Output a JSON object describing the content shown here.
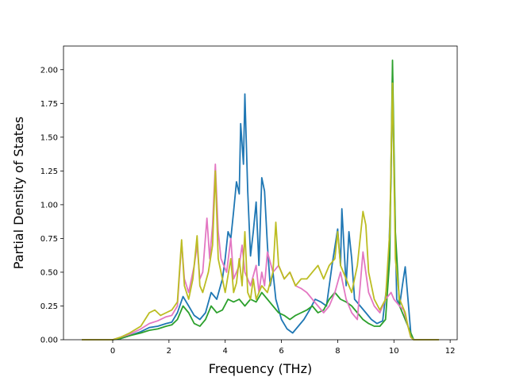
{
  "chart_data": {
    "type": "line",
    "title": "",
    "xlabel": "Frequency (THz)",
    "ylabel": "Partial Density of States",
    "xlim": [
      -1.75,
      12.25
    ],
    "ylim": [
      0,
      2.175
    ],
    "xticks": [
      0,
      2,
      4,
      6,
      8,
      10,
      12
    ],
    "xtick_labels": [
      "0",
      "2",
      "4",
      "6",
      "8",
      "10",
      "12"
    ],
    "yticks": [
      0,
      0.25,
      0.5,
      0.75,
      1.0,
      1.25,
      1.5,
      1.75,
      2.0
    ],
    "ytick_labels": [
      "0.00",
      "0.25",
      "0.50",
      "0.75",
      "1.00",
      "1.25",
      "1.50",
      "1.75",
      "2.00"
    ],
    "grid": false,
    "legend": "none",
    "series": [
      {
        "color": "#1f77b4",
        "points": [
          [
            -1.1,
            0
          ],
          [
            0.0,
            0
          ],
          [
            0.3,
            0.01
          ],
          [
            0.6,
            0.03
          ],
          [
            1.0,
            0.06
          ],
          [
            1.3,
            0.09
          ],
          [
            1.6,
            0.1
          ],
          [
            1.9,
            0.12
          ],
          [
            2.1,
            0.13
          ],
          [
            2.3,
            0.2
          ],
          [
            2.5,
            0.32
          ],
          [
            2.7,
            0.25
          ],
          [
            2.9,
            0.18
          ],
          [
            3.1,
            0.15
          ],
          [
            3.3,
            0.2
          ],
          [
            3.5,
            0.35
          ],
          [
            3.7,
            0.3
          ],
          [
            3.9,
            0.45
          ],
          [
            4.0,
            0.6
          ],
          [
            4.1,
            0.8
          ],
          [
            4.2,
            0.75
          ],
          [
            4.3,
            0.95
          ],
          [
            4.4,
            1.17
          ],
          [
            4.5,
            1.08
          ],
          [
            4.55,
            1.6
          ],
          [
            4.6,
            1.45
          ],
          [
            4.65,
            1.3
          ],
          [
            4.7,
            1.82
          ],
          [
            4.8,
            1.1
          ],
          [
            4.9,
            0.62
          ],
          [
            5.0,
            0.8
          ],
          [
            5.1,
            1.02
          ],
          [
            5.2,
            0.55
          ],
          [
            5.3,
            1.2
          ],
          [
            5.4,
            1.1
          ],
          [
            5.5,
            0.7
          ],
          [
            5.6,
            0.4
          ],
          [
            5.7,
            0.5
          ],
          [
            5.8,
            0.3
          ],
          [
            6.0,
            0.15
          ],
          [
            6.2,
            0.08
          ],
          [
            6.4,
            0.05
          ],
          [
            6.6,
            0.1
          ],
          [
            6.8,
            0.15
          ],
          [
            7.0,
            0.22
          ],
          [
            7.2,
            0.3
          ],
          [
            7.4,
            0.28
          ],
          [
            7.6,
            0.25
          ],
          [
            7.8,
            0.55
          ],
          [
            8.0,
            0.82
          ],
          [
            8.1,
            0.55
          ],
          [
            8.15,
            0.97
          ],
          [
            8.3,
            0.4
          ],
          [
            8.4,
            0.8
          ],
          [
            8.5,
            0.6
          ],
          [
            8.6,
            0.3
          ],
          [
            8.8,
            0.25
          ],
          [
            9.0,
            0.2
          ],
          [
            9.2,
            0.15
          ],
          [
            9.4,
            0.12
          ],
          [
            9.6,
            0.14
          ],
          [
            9.8,
            0.5
          ],
          [
            9.9,
            1.2
          ],
          [
            9.95,
            2.0
          ],
          [
            10.0,
            1.3
          ],
          [
            10.1,
            0.3
          ],
          [
            10.2,
            0.25
          ],
          [
            10.3,
            0.4
          ],
          [
            10.4,
            0.54
          ],
          [
            10.5,
            0.3
          ],
          [
            10.6,
            0.05
          ],
          [
            10.7,
            0
          ],
          [
            11.6,
            0
          ]
        ]
      },
      {
        "color": "#2ca02c",
        "points": [
          [
            -1.1,
            0
          ],
          [
            0.0,
            0
          ],
          [
            0.3,
            0.01
          ],
          [
            0.6,
            0.03
          ],
          [
            1.0,
            0.05
          ],
          [
            1.3,
            0.07
          ],
          [
            1.6,
            0.08
          ],
          [
            1.9,
            0.1
          ],
          [
            2.1,
            0.11
          ],
          [
            2.3,
            0.15
          ],
          [
            2.5,
            0.25
          ],
          [
            2.7,
            0.2
          ],
          [
            2.9,
            0.12
          ],
          [
            3.1,
            0.1
          ],
          [
            3.3,
            0.15
          ],
          [
            3.5,
            0.25
          ],
          [
            3.7,
            0.2
          ],
          [
            3.9,
            0.22
          ],
          [
            4.1,
            0.3
          ],
          [
            4.3,
            0.28
          ],
          [
            4.5,
            0.3
          ],
          [
            4.7,
            0.25
          ],
          [
            4.9,
            0.3
          ],
          [
            5.1,
            0.28
          ],
          [
            5.3,
            0.35
          ],
          [
            5.5,
            0.3
          ],
          [
            5.7,
            0.25
          ],
          [
            5.9,
            0.2
          ],
          [
            6.1,
            0.18
          ],
          [
            6.3,
            0.15
          ],
          [
            6.5,
            0.18
          ],
          [
            6.7,
            0.2
          ],
          [
            6.9,
            0.22
          ],
          [
            7.1,
            0.25
          ],
          [
            7.3,
            0.2
          ],
          [
            7.5,
            0.22
          ],
          [
            7.7,
            0.3
          ],
          [
            7.9,
            0.35
          ],
          [
            8.1,
            0.3
          ],
          [
            8.3,
            0.28
          ],
          [
            8.5,
            0.25
          ],
          [
            8.7,
            0.2
          ],
          [
            8.9,
            0.15
          ],
          [
            9.1,
            0.12
          ],
          [
            9.3,
            0.1
          ],
          [
            9.5,
            0.1
          ],
          [
            9.7,
            0.15
          ],
          [
            9.85,
            0.6
          ],
          [
            9.95,
            2.07
          ],
          [
            10.05,
            0.8
          ],
          [
            10.2,
            0.25
          ],
          [
            10.4,
            0.15
          ],
          [
            10.6,
            0.05
          ],
          [
            10.7,
            0
          ],
          [
            11.6,
            0
          ]
        ]
      },
      {
        "color": "#e377c2",
        "points": [
          [
            -1.1,
            0
          ],
          [
            0.0,
            0
          ],
          [
            0.3,
            0.02
          ],
          [
            0.6,
            0.04
          ],
          [
            1.0,
            0.08
          ],
          [
            1.3,
            0.12
          ],
          [
            1.6,
            0.14
          ],
          [
            1.9,
            0.17
          ],
          [
            2.1,
            0.18
          ],
          [
            2.3,
            0.25
          ],
          [
            2.45,
            0.72
          ],
          [
            2.55,
            0.45
          ],
          [
            2.7,
            0.35
          ],
          [
            2.9,
            0.55
          ],
          [
            3.0,
            0.7
          ],
          [
            3.1,
            0.45
          ],
          [
            3.2,
            0.5
          ],
          [
            3.35,
            0.9
          ],
          [
            3.45,
            0.6
          ],
          [
            3.55,
            0.85
          ],
          [
            3.65,
            1.3
          ],
          [
            3.75,
            0.8
          ],
          [
            3.85,
            0.6
          ],
          [
            3.95,
            0.55
          ],
          [
            4.05,
            0.5
          ],
          [
            4.2,
            0.75
          ],
          [
            4.3,
            0.45
          ],
          [
            4.4,
            0.5
          ],
          [
            4.5,
            0.55
          ],
          [
            4.6,
            0.7
          ],
          [
            4.7,
            0.5
          ],
          [
            4.8,
            0.45
          ],
          [
            4.9,
            0.4
          ],
          [
            5.1,
            0.55
          ],
          [
            5.2,
            0.35
          ],
          [
            5.3,
            0.5
          ],
          [
            5.4,
            0.4
          ],
          [
            5.5,
            0.65
          ],
          [
            5.7,
            0.5
          ],
          [
            5.9,
            0.55
          ],
          [
            6.1,
            0.45
          ],
          [
            6.3,
            0.5
          ],
          [
            6.5,
            0.4
          ],
          [
            6.7,
            0.38
          ],
          [
            6.9,
            0.35
          ],
          [
            7.1,
            0.3
          ],
          [
            7.3,
            0.25
          ],
          [
            7.5,
            0.2
          ],
          [
            7.7,
            0.25
          ],
          [
            7.9,
            0.35
          ],
          [
            8.1,
            0.5
          ],
          [
            8.3,
            0.3
          ],
          [
            8.5,
            0.2
          ],
          [
            8.7,
            0.15
          ],
          [
            8.9,
            0.65
          ],
          [
            9.1,
            0.35
          ],
          [
            9.3,
            0.25
          ],
          [
            9.5,
            0.2
          ],
          [
            9.7,
            0.3
          ],
          [
            9.9,
            0.35
          ],
          [
            10.0,
            0.3
          ],
          [
            10.2,
            0.25
          ],
          [
            10.35,
            0.22
          ],
          [
            10.5,
            0.1
          ],
          [
            10.6,
            0.02
          ],
          [
            10.7,
            0
          ],
          [
            11.6,
            0
          ]
        ]
      },
      {
        "color": "#bcbd22",
        "points": [
          [
            -1.1,
            0
          ],
          [
            0.0,
            0
          ],
          [
            0.3,
            0.02
          ],
          [
            0.6,
            0.05
          ],
          [
            1.0,
            0.1
          ],
          [
            1.3,
            0.2
          ],
          [
            1.5,
            0.22
          ],
          [
            1.7,
            0.18
          ],
          [
            1.9,
            0.2
          ],
          [
            2.1,
            0.22
          ],
          [
            2.3,
            0.28
          ],
          [
            2.45,
            0.74
          ],
          [
            2.55,
            0.4
          ],
          [
            2.7,
            0.3
          ],
          [
            2.85,
            0.45
          ],
          [
            3.0,
            0.77
          ],
          [
            3.1,
            0.4
          ],
          [
            3.2,
            0.35
          ],
          [
            3.4,
            0.5
          ],
          [
            3.55,
            0.7
          ],
          [
            3.65,
            1.25
          ],
          [
            3.75,
            0.6
          ],
          [
            3.9,
            0.45
          ],
          [
            4.0,
            0.35
          ],
          [
            4.2,
            0.6
          ],
          [
            4.3,
            0.35
          ],
          [
            4.4,
            0.42
          ],
          [
            4.5,
            0.6
          ],
          [
            4.6,
            0.4
          ],
          [
            4.7,
            0.8
          ],
          [
            4.8,
            0.35
          ],
          [
            4.9,
            0.3
          ],
          [
            5.0,
            0.45
          ],
          [
            5.1,
            0.3
          ],
          [
            5.3,
            0.4
          ],
          [
            5.5,
            0.35
          ],
          [
            5.7,
            0.5
          ],
          [
            5.8,
            0.87
          ],
          [
            5.9,
            0.55
          ],
          [
            6.1,
            0.45
          ],
          [
            6.3,
            0.5
          ],
          [
            6.5,
            0.4
          ],
          [
            6.7,
            0.45
          ],
          [
            6.9,
            0.45
          ],
          [
            7.1,
            0.5
          ],
          [
            7.3,
            0.55
          ],
          [
            7.5,
            0.45
          ],
          [
            7.7,
            0.55
          ],
          [
            7.9,
            0.6
          ],
          [
            8.0,
            0.8
          ],
          [
            8.1,
            0.55
          ],
          [
            8.3,
            0.45
          ],
          [
            8.5,
            0.35
          ],
          [
            8.7,
            0.55
          ],
          [
            8.9,
            0.95
          ],
          [
            9.0,
            0.85
          ],
          [
            9.1,
            0.5
          ],
          [
            9.3,
            0.3
          ],
          [
            9.5,
            0.22
          ],
          [
            9.7,
            0.3
          ],
          [
            9.85,
            0.8
          ],
          [
            9.95,
            1.9
          ],
          [
            10.05,
            0.6
          ],
          [
            10.2,
            0.3
          ],
          [
            10.4,
            0.2
          ],
          [
            10.5,
            0.1
          ],
          [
            10.6,
            0.02
          ],
          [
            10.7,
            0
          ],
          [
            11.6,
            0
          ]
        ]
      }
    ]
  }
}
